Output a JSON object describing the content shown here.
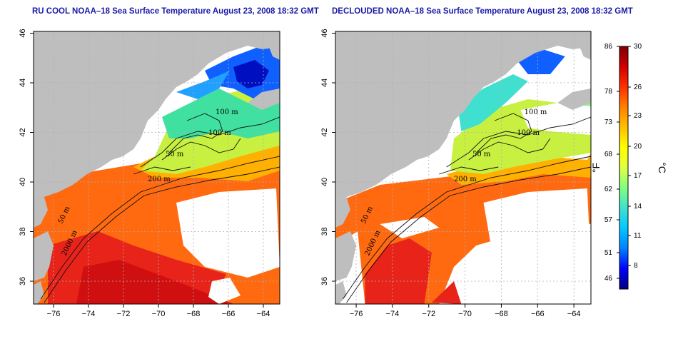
{
  "panels": [
    {
      "title": "RU COOL NOAA–18 Sea Surface Temperature August 23, 2008 18:32 GMT",
      "mode": "full"
    },
    {
      "title": "DECLOUDED NOAA–18 Sea Surface Temperature August 23, 2008 18:32 GMT",
      "mode": "declouded"
    }
  ],
  "axes": {
    "x_ticks": [
      "−76",
      "−74",
      "−72",
      "−70",
      "−68",
      "−66",
      "−64"
    ],
    "y_ticks": [
      "36",
      "38",
      "40",
      "42",
      "44",
      "46"
    ]
  },
  "contour_labels": [
    "100 m",
    "100 m",
    "50 m",
    "200 m",
    "50 m",
    "2000 m"
  ],
  "colorbar": {
    "fahrenheit_ticks": [
      "86",
      "78",
      "73",
      "68",
      "62",
      "57",
      "51",
      "46"
    ],
    "celsius_ticks": [
      "30",
      "26",
      "23",
      "20",
      "17",
      "14",
      "11",
      "8"
    ],
    "fahrenheit_unit": "°F",
    "celsius_unit": "°C",
    "colors": [
      "#000080",
      "#0000ff",
      "#0080ff",
      "#00c8ff",
      "#40e0d0",
      "#80ff80",
      "#e0ff40",
      "#ffff00",
      "#ffc000",
      "#ff8000",
      "#ff3000",
      "#d00000",
      "#800000"
    ]
  },
  "colors": {
    "land": "#bebebe",
    "cloud": "#ffffff",
    "title": "#1a1aa8"
  }
}
